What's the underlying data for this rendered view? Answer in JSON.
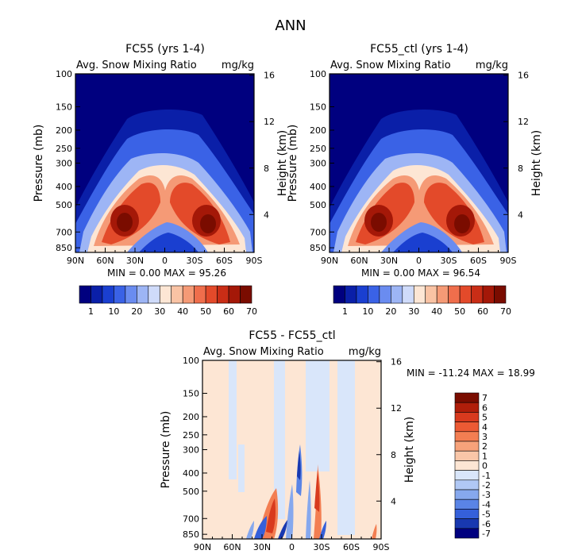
{
  "page_title": "ANN",
  "chart_data": [
    {
      "type": "heatmap",
      "title": "FC55 (yrs 1-4)",
      "subtitle_left": "Avg. Snow Mixing Ratio",
      "subtitle_right": "mg/kg",
      "ylabel": "Pressure (mb)",
      "ylabel_right": "Height (km)",
      "x_ticks": [
        "90N",
        "60N",
        "30N",
        "0",
        "30S",
        "60S",
        "90S"
      ],
      "y_ticks": [
        "100",
        "150",
        "200",
        "250",
        "300",
        "400",
        "500",
        "700",
        "850"
      ],
      "y_right_ticks": [
        "16",
        "12",
        "8",
        "4"
      ],
      "stats": {
        "min_label": "MIN =",
        "min": "0.00",
        "max_label": "MAX =",
        "max": "95.26"
      },
      "colorbar_labels": [
        "1",
        "10",
        "20",
        "30",
        "40",
        "50",
        "60",
        "70"
      ],
      "colorbar_colors": [
        "#00007f",
        "#0a1fa8",
        "#1a3fd0",
        "#3a62e6",
        "#6a8cf0",
        "#9db5f5",
        "#cfdbfa",
        "#fde6d4",
        "#f9c3a4",
        "#f59a76",
        "#ef6e4c",
        "#e34a2a",
        "#c92d16",
        "#a41808",
        "#7a0c00"
      ]
    },
    {
      "type": "heatmap",
      "title": "FC55_ctl (yrs 1-4)",
      "subtitle_left": "Avg. Snow Mixing Ratio",
      "subtitle_right": "mg/kg",
      "ylabel": "Pressure (mb)",
      "ylabel_right": "Height (km)",
      "x_ticks": [
        "90N",
        "60N",
        "30N",
        "0",
        "30S",
        "60S",
        "90S"
      ],
      "y_ticks": [
        "100",
        "150",
        "200",
        "250",
        "300",
        "400",
        "500",
        "700",
        "850"
      ],
      "y_right_ticks": [
        "16",
        "12",
        "8",
        "4"
      ],
      "stats": {
        "min_label": "MIN =",
        "min": "0.00",
        "max_label": "MAX =",
        "max": "96.54"
      },
      "colorbar_labels": [
        "1",
        "10",
        "20",
        "30",
        "40",
        "50",
        "60",
        "70"
      ],
      "colorbar_colors": [
        "#00007f",
        "#0a1fa8",
        "#1a3fd0",
        "#3a62e6",
        "#6a8cf0",
        "#9db5f5",
        "#cfdbfa",
        "#fde6d4",
        "#f9c3a4",
        "#f59a76",
        "#ef6e4c",
        "#e34a2a",
        "#c92d16",
        "#a41808",
        "#7a0c00"
      ]
    },
    {
      "type": "heatmap",
      "title": "FC55 - FC55_ctl",
      "subtitle_left": "Avg. Snow Mixing Ratio",
      "subtitle_right": "mg/kg",
      "ylabel": "Pressure (mb)",
      "ylabel_right": "Height (km)",
      "x_ticks": [
        "90N",
        "60N",
        "30N",
        "0",
        "30S",
        "60S",
        "90S"
      ],
      "y_ticks": [
        "100",
        "150",
        "200",
        "250",
        "300",
        "400",
        "500",
        "700",
        "850"
      ],
      "y_right_ticks": [
        "16",
        "12",
        "8",
        "4"
      ],
      "stats": {
        "min_label": "MIN =",
        "min": "-11.24",
        "max_label": "MAX =",
        "max": "18.99"
      },
      "colorbar_labels": [
        "7",
        "6",
        "5",
        "4",
        "3",
        "2",
        "1",
        "0",
        "-1",
        "-2",
        "-3",
        "-4",
        "-5",
        "-6",
        "-7"
      ],
      "colorbar_colors": [
        "#7a0c00",
        "#b01e0a",
        "#d83a1e",
        "#ec5a34",
        "#f37e52",
        "#f7a27a",
        "#f9c6a8",
        "#fde6d4",
        "#d9e6fa",
        "#b0c8f5",
        "#86a8ee",
        "#5a84e6",
        "#3560da",
        "#1838b0",
        "#00007f"
      ]
    }
  ]
}
